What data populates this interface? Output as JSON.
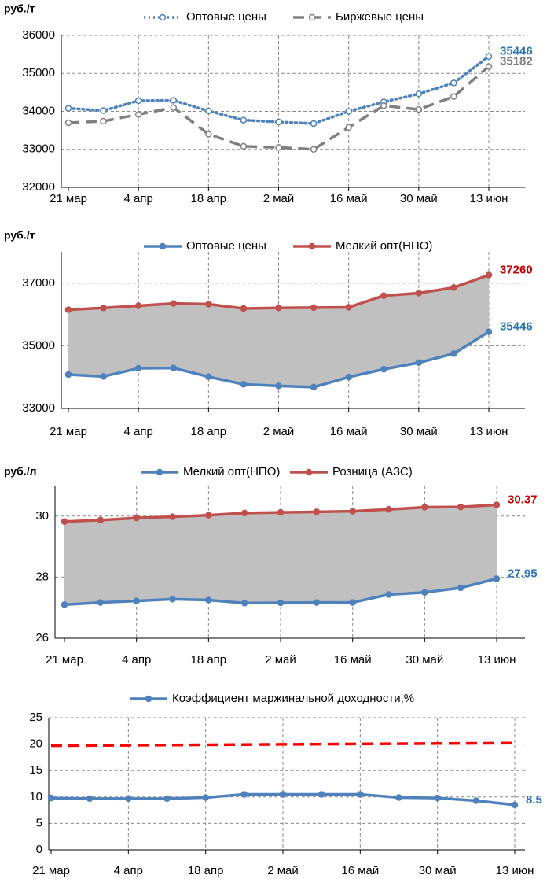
{
  "chart_data": [
    {
      "type": "line",
      "ylabel": "руб./т",
      "categories": [
        "21 мар",
        null,
        "4 апр",
        null,
        "18 апр",
        null,
        "2 май",
        null,
        "16 май",
        null,
        "30 май",
        null,
        "13 июн"
      ],
      "series": [
        {
          "name": "Оптовые цены",
          "color": "#4f81bd",
          "dash": "dotted",
          "values": [
            34080,
            34020,
            34280,
            34290,
            34010,
            33770,
            33720,
            33680,
            34000,
            34250,
            34460,
            34750,
            35446
          ]
        },
        {
          "name": "Биржевые цены",
          "color": "#808080",
          "dash": "dashed",
          "values": [
            33700,
            33740,
            33920,
            34100,
            33400,
            33080,
            33050,
            33000,
            33580,
            34150,
            34050,
            34390,
            35182
          ]
        }
      ],
      "ylim": [
        32000,
        36000
      ],
      "yticks": [
        32000,
        33000,
        34000,
        35000,
        36000
      ],
      "grid": true,
      "marker": "hollow",
      "fill_between": false
    },
    {
      "type": "line",
      "ylabel": "руб./т",
      "categories": [
        "21 мар",
        null,
        "4 апр",
        null,
        "18 апр",
        null,
        "2 май",
        null,
        "16 май",
        null,
        "30 май",
        null,
        "13 июн"
      ],
      "series": [
        {
          "name": "Оптовые цены",
          "color": "#4f81bd",
          "values": [
            34080,
            34020,
            34280,
            34290,
            34010,
            33770,
            33720,
            33680,
            34000,
            34250,
            34460,
            34750,
            35446
          ]
        },
        {
          "name": "Мелкий опт(НПО)",
          "color": "#c0504d",
          "values": [
            36150,
            36210,
            36280,
            36350,
            36330,
            36190,
            36210,
            36220,
            36230,
            36600,
            36680,
            36860,
            37260
          ]
        }
      ],
      "ylim": [
        33000,
        38000
      ],
      "yticks": [
        33000,
        35000,
        37000
      ],
      "grid": true,
      "marker": "filled",
      "fill_between": true
    },
    {
      "type": "line",
      "ylabel": "руб./л",
      "categories": [
        "21 мар",
        null,
        "4 апр",
        null,
        "18 апр",
        null,
        "2 май",
        null,
        "16 май",
        null,
        "30 май",
        null,
        "13 июн"
      ],
      "series": [
        {
          "name": "Мелкий опт(НПО)",
          "color": "#4f81bd",
          "values": [
            27.1,
            27.17,
            27.22,
            27.28,
            27.25,
            27.15,
            27.16,
            27.17,
            27.17,
            27.43,
            27.5,
            27.65,
            27.95
          ]
        },
        {
          "name": "Розница (АЗС)",
          "color": "#c0504d",
          "values": [
            29.82,
            29.87,
            29.94,
            29.98,
            30.03,
            30.1,
            30.12,
            30.14,
            30.16,
            30.22,
            30.29,
            30.3,
            30.37
          ]
        }
      ],
      "ylim": [
        26,
        31
      ],
      "yticks": [
        26,
        28,
        30
      ],
      "grid": true,
      "marker": "filled",
      "fill_between": true
    },
    {
      "type": "line",
      "categories": [
        "21 мар",
        null,
        "4 апр",
        null,
        "18 апр",
        null,
        "2 май",
        null,
        "16 май",
        null,
        "30 май",
        null,
        "13 июн"
      ],
      "series": [
        {
          "name": "Коэффициент маржинальной доходности,%",
          "color": "#4f81bd",
          "values": [
            9.8,
            9.7,
            9.7,
            9.7,
            9.9,
            10.5,
            10.5,
            10.5,
            10.5,
            9.9,
            9.8,
            9.3,
            8.5
          ]
        },
        {
          "color": "#ff0000",
          "dash": "dashed",
          "marker": false,
          "values": [
            19.7,
            19.74,
            19.78,
            19.83,
            19.87,
            19.91,
            19.95,
            19.99,
            20.03,
            20.07,
            20.12,
            20.16,
            20.2
          ]
        }
      ],
      "ylim": [
        0,
        25
      ],
      "yticks": [
        0,
        5,
        10,
        15,
        20,
        25
      ],
      "grid": true,
      "marker": "filled",
      "fill_between": false
    }
  ]
}
